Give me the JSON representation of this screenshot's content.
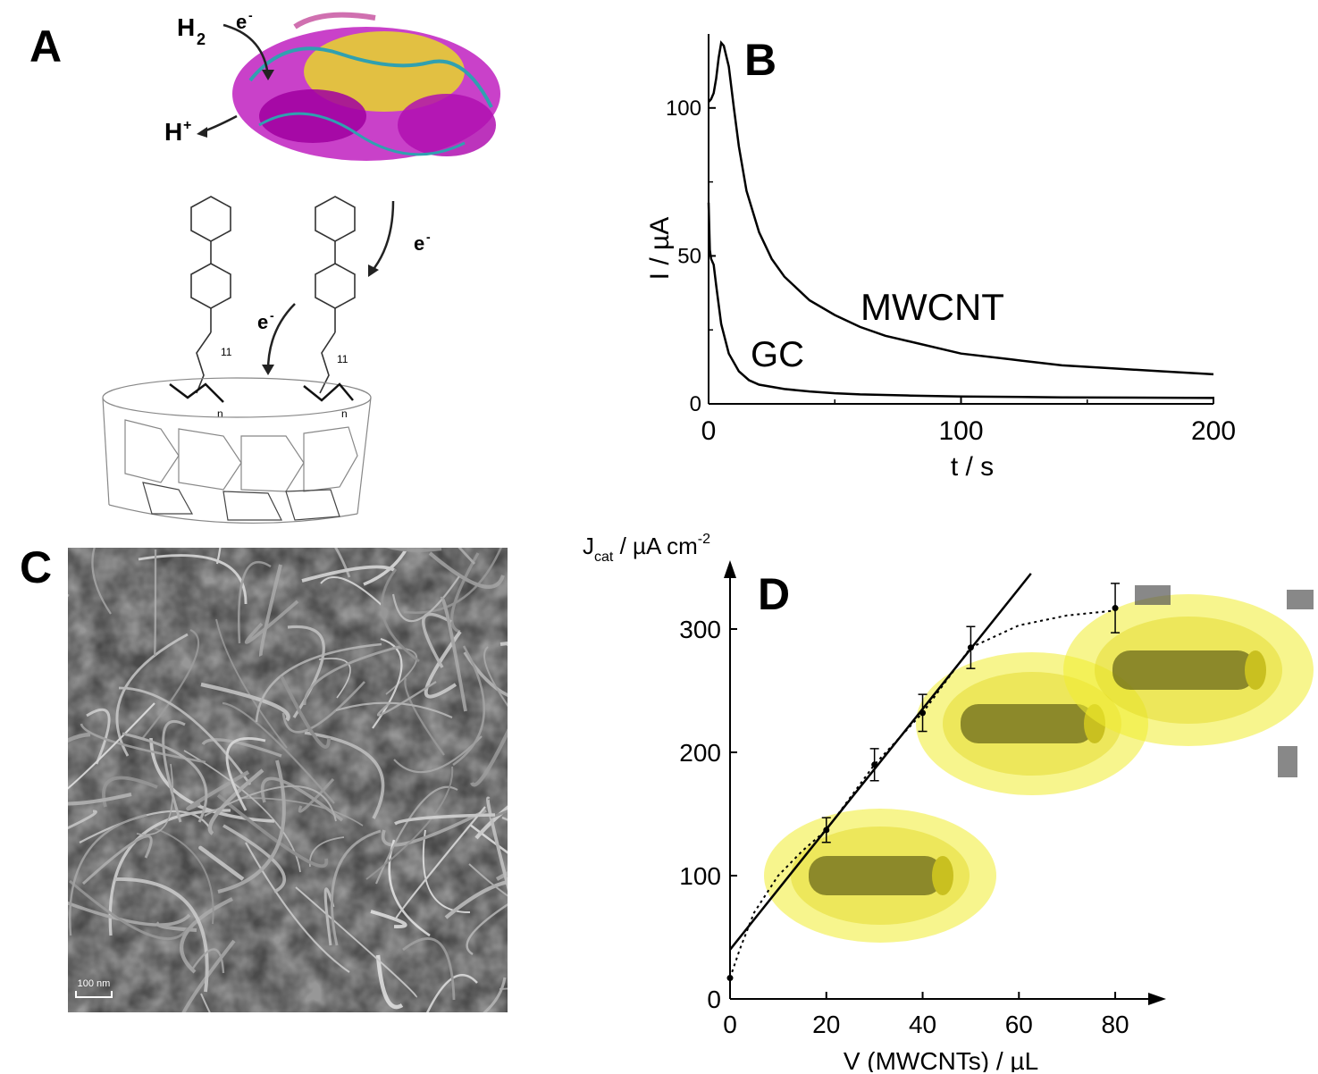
{
  "panels": {
    "a": {
      "letter": "A",
      "labels": {
        "h2": "H",
        "h2_sub": "2",
        "h_plus": "H",
        "h_plus_sup": "+",
        "e1": "e",
        "e2": "e",
        "e3": "e",
        "e_sup": "-",
        "n_sub": "n",
        "count": "11"
      }
    },
    "b": {
      "letter": "B"
    },
    "c": {
      "letter": "C",
      "scale_bar": "100 nm"
    },
    "d": {
      "letter": "D"
    }
  },
  "chart_data": [
    {
      "id": "B",
      "type": "line",
      "xlabel": "t / s",
      "ylabel": "I / µA",
      "xlim": [
        0,
        200
      ],
      "ylim": [
        0,
        125
      ],
      "xticks": [
        0,
        100,
        200
      ],
      "yticks": [
        0,
        50,
        100
      ],
      "series": [
        {
          "name": "MWCNT",
          "x": [
            0,
            1,
            2,
            3,
            4,
            5,
            6,
            8,
            10,
            12,
            15,
            20,
            25,
            30,
            40,
            50,
            60,
            70,
            80,
            100,
            120,
            140,
            160,
            180,
            200
          ],
          "y": [
            102,
            103,
            105,
            110,
            117,
            122,
            121,
            114,
            100,
            87,
            72,
            58,
            49,
            43,
            35,
            30,
            26,
            23,
            21,
            17,
            15,
            13,
            12,
            11,
            10
          ]
        },
        {
          "name": "GC",
          "x": [
            0,
            0.5,
            1,
            2,
            3,
            5,
            8,
            12,
            16,
            20,
            30,
            40,
            50,
            60,
            80,
            100,
            140,
            200
          ],
          "y": [
            68,
            52,
            49,
            47,
            40,
            27,
            17,
            11,
            8,
            6.5,
            5,
            4.2,
            3.6,
            3.2,
            2.8,
            2.5,
            2.2,
            2
          ]
        }
      ]
    },
    {
      "id": "D",
      "type": "scatter",
      "xlabel": "V (MWCNTs) / µL",
      "ylabel": {
        "main": "J",
        "sub": "cat",
        "unit": " / µA cm",
        "sup": "-2"
      },
      "xlim": [
        0,
        85
      ],
      "ylim": [
        0,
        350
      ],
      "xticks": [
        0,
        20,
        40,
        60,
        80
      ],
      "yticks": [
        0,
        100,
        200,
        300
      ],
      "points": {
        "x": [
          0,
          20,
          30,
          40,
          50,
          80
        ],
        "y": [
          17,
          137,
          190,
          232,
          285,
          317
        ],
        "err": [
          0,
          10,
          13,
          15,
          17,
          20
        ]
      },
      "linear_fit": {
        "x": [
          0,
          62.5
        ],
        "y": [
          40,
          345
        ]
      },
      "saturation_curve": {
        "x": [
          0,
          2,
          5,
          10,
          15,
          20,
          30,
          40,
          50,
          60,
          70,
          80
        ],
        "y": [
          17,
          40,
          70,
          100,
          120,
          137,
          190,
          232,
          285,
          303,
          311,
          315
        ]
      }
    }
  ]
}
